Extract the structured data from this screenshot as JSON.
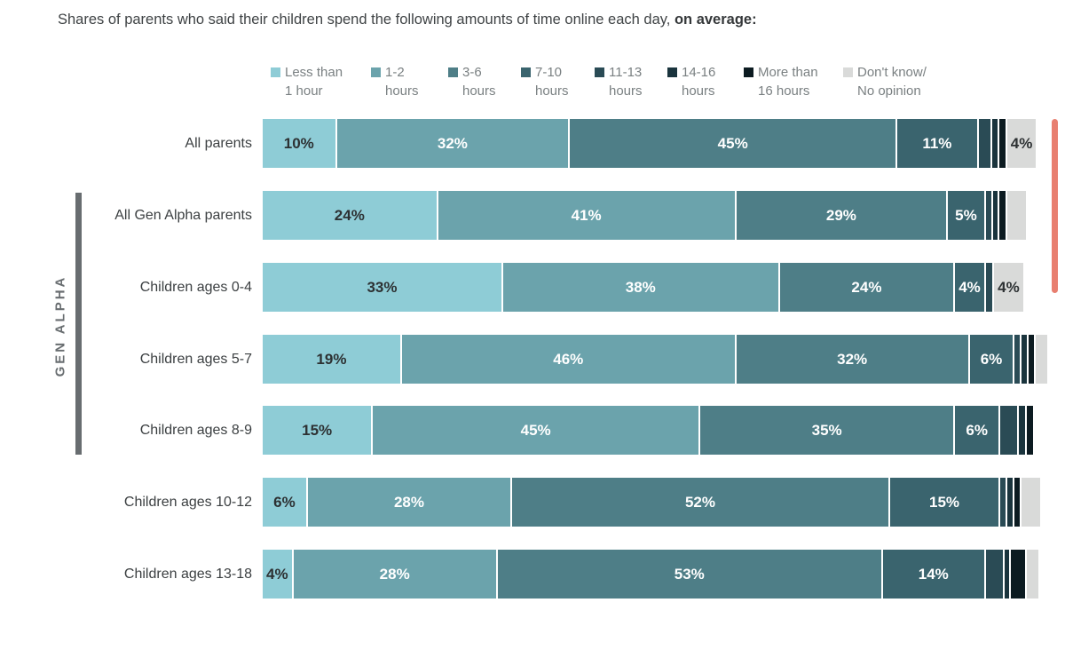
{
  "title": {
    "text": "Shares of parents who said their children spend the following amounts of time online each day,",
    "emphasis": "on average:"
  },
  "gen_alpha_group_label": "GEN ALPHA",
  "colors": {
    "lt1": "#8eccd6",
    "h1_2": "#6ba3ac",
    "h3_6": "#4e7e87",
    "h7_10": "#3a646e",
    "h11_13": "#2a4b55",
    "h14_16": "#1a343d",
    "gt16": "#0c1b21",
    "dontknow": "#d9dad9",
    "scrollbar_thumb": "#e87f70",
    "bracket": "#686d70",
    "label_on_light": "#2d3133",
    "label_on_dark": "#ffffff",
    "legend_text": "#7a8082",
    "row_label_text": "#3b3f41",
    "title_text": "#3f4345"
  },
  "chart_data": {
    "type": "bar",
    "stacked": true,
    "orientation": "horizontal",
    "unit": "percent",
    "xlim": [
      0,
      100
    ],
    "grid": false,
    "legend_position": "top",
    "title": "Shares of parents who said their children spend the following amounts of time online each day, on average:",
    "legend": [
      {
        "key": "lt1",
        "line1": "Less than",
        "line2": "1 hour"
      },
      {
        "key": "h1_2",
        "line1": "1-2",
        "line2": "hours"
      },
      {
        "key": "h3_6",
        "line1": "3-6",
        "line2": "hours"
      },
      {
        "key": "h7_10",
        "line1": "7-10",
        "line2": "hours"
      },
      {
        "key": "h11_13",
        "line1": "11-13",
        "line2": "hours"
      },
      {
        "key": "h14_16",
        "line1": "14-16",
        "line2": "hours"
      },
      {
        "key": "gt16",
        "line1": "More than",
        "line2": "16 hours"
      },
      {
        "key": "dontknow",
        "line1": "Don't know/",
        "line2": "No opinion"
      }
    ],
    "rows": [
      {
        "label": "All parents",
        "gen_alpha": false,
        "segments": [
          {
            "key": "lt1",
            "value": 10,
            "text": "10%"
          },
          {
            "key": "h1_2",
            "value": 32,
            "text": "32%"
          },
          {
            "key": "h3_6",
            "value": 45,
            "text": "45%"
          },
          {
            "key": "h7_10",
            "value": 11,
            "text": "11%"
          },
          {
            "key": "h11_13",
            "value": 1.6,
            "text": ""
          },
          {
            "key": "h14_16",
            "value": 0.8,
            "text": ""
          },
          {
            "key": "gt16",
            "value": 0.8,
            "text": ""
          },
          {
            "key": "dontknow",
            "value": 4,
            "text": "4%"
          }
        ]
      },
      {
        "label": "All Gen Alpha parents",
        "gen_alpha": true,
        "segments": [
          {
            "key": "lt1",
            "value": 24,
            "text": "24%"
          },
          {
            "key": "h1_2",
            "value": 41,
            "text": "41%"
          },
          {
            "key": "h3_6",
            "value": 29,
            "text": "29%"
          },
          {
            "key": "h7_10",
            "value": 5,
            "text": "5%"
          },
          {
            "key": "h11_13",
            "value": 0.7,
            "text": ""
          },
          {
            "key": "h14_16",
            "value": 0.7,
            "text": ""
          },
          {
            "key": "gt16",
            "value": 0.8,
            "text": ""
          },
          {
            "key": "dontknow",
            "value": 2.6,
            "text": ""
          }
        ]
      },
      {
        "label": "Children ages 0-4",
        "gen_alpha": true,
        "segments": [
          {
            "key": "lt1",
            "value": 33,
            "text": "33%"
          },
          {
            "key": "h1_2",
            "value": 38,
            "text": "38%"
          },
          {
            "key": "h3_6",
            "value": 24,
            "text": "24%"
          },
          {
            "key": "h7_10",
            "value": 4,
            "text": "4%"
          },
          {
            "key": "h11_13",
            "value": 0.9,
            "text": ""
          },
          {
            "key": "dontknow",
            "value": 4,
            "text": "4%"
          }
        ]
      },
      {
        "label": "Children ages 5-7",
        "gen_alpha": true,
        "segments": [
          {
            "key": "lt1",
            "value": 19,
            "text": "19%"
          },
          {
            "key": "h1_2",
            "value": 46,
            "text": "46%"
          },
          {
            "key": "h3_6",
            "value": 32,
            "text": "32%"
          },
          {
            "key": "h7_10",
            "value": 6,
            "text": "6%"
          },
          {
            "key": "h11_13",
            "value": 0.7,
            "text": ""
          },
          {
            "key": "h14_16",
            "value": 0.7,
            "text": ""
          },
          {
            "key": "gt16",
            "value": 0.8,
            "text": ""
          },
          {
            "key": "dontknow",
            "value": 1.6,
            "text": ""
          }
        ]
      },
      {
        "label": "Children ages 8-9",
        "gen_alpha": true,
        "segments": [
          {
            "key": "lt1",
            "value": 15,
            "text": "15%"
          },
          {
            "key": "h1_2",
            "value": 45,
            "text": "45%"
          },
          {
            "key": "h3_6",
            "value": 35,
            "text": "35%"
          },
          {
            "key": "h7_10",
            "value": 6,
            "text": "6%"
          },
          {
            "key": "h11_13",
            "value": 2.3,
            "text": ""
          },
          {
            "key": "h14_16",
            "value": 0.9,
            "text": ""
          },
          {
            "key": "gt16",
            "value": 0.8,
            "text": ""
          }
        ]
      },
      {
        "label": "Children ages 10-12",
        "gen_alpha": false,
        "segments": [
          {
            "key": "lt1",
            "value": 6,
            "text": "6%"
          },
          {
            "key": "h1_2",
            "value": 28,
            "text": "28%"
          },
          {
            "key": "h3_6",
            "value": 52,
            "text": "52%"
          },
          {
            "key": "h7_10",
            "value": 15,
            "text": "15%"
          },
          {
            "key": "h11_13",
            "value": 0.7,
            "text": ""
          },
          {
            "key": "h14_16",
            "value": 0.7,
            "text": ""
          },
          {
            "key": "gt16",
            "value": 0.8,
            "text": ""
          },
          {
            "key": "dontknow",
            "value": 2.6,
            "text": ""
          }
        ]
      },
      {
        "label": "Children ages 13-18",
        "gen_alpha": false,
        "segments": [
          {
            "key": "lt1",
            "value": 4,
            "text": "4%"
          },
          {
            "key": "h1_2",
            "value": 28,
            "text": "28%"
          },
          {
            "key": "h3_6",
            "value": 53,
            "text": "53%"
          },
          {
            "key": "h7_10",
            "value": 14,
            "text": "14%"
          },
          {
            "key": "h11_13",
            "value": 2.3,
            "text": ""
          },
          {
            "key": "h14_16",
            "value": 0.7,
            "text": ""
          },
          {
            "key": "gt16",
            "value": 1.9,
            "text": ""
          },
          {
            "key": "dontknow",
            "value": 1.6,
            "text": ""
          }
        ]
      }
    ]
  }
}
